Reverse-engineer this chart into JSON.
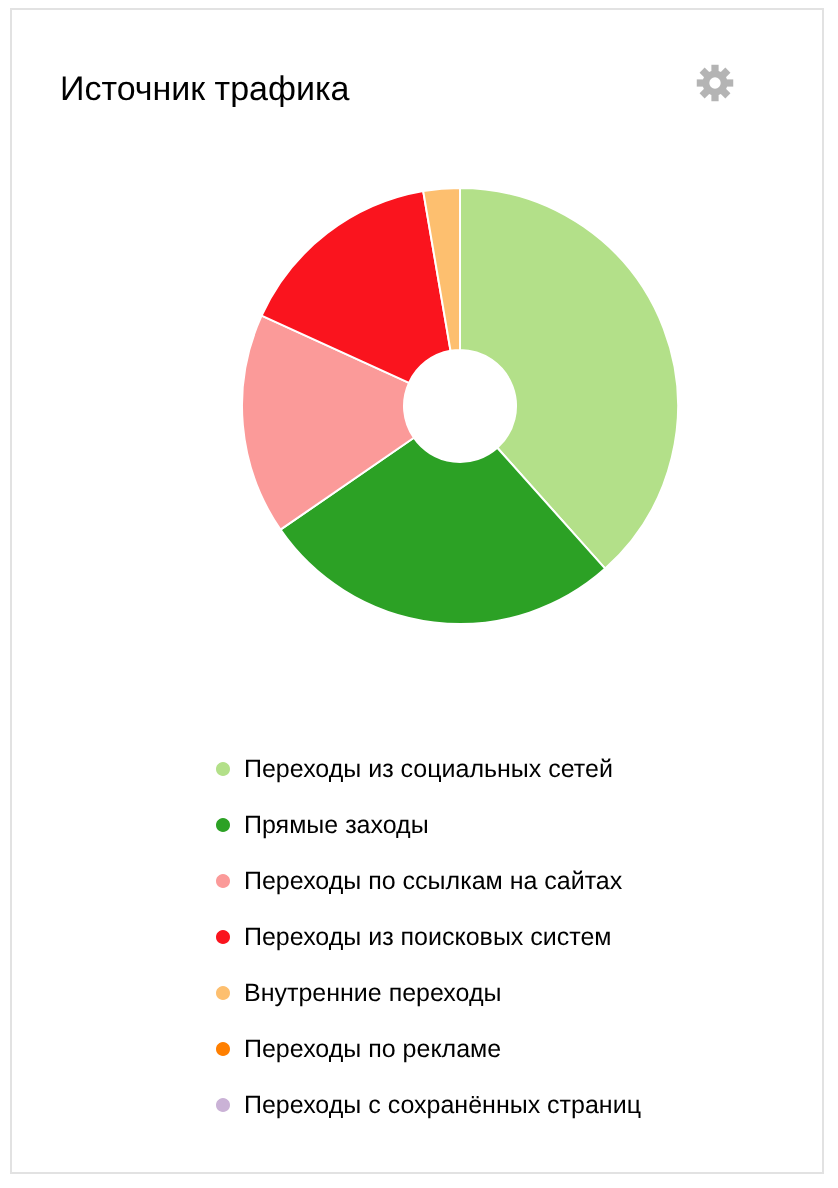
{
  "chart_data": {
    "type": "donut",
    "title": "Источник трафика",
    "categories": [
      "Переходы из социальных сетей",
      "Прямые заходы",
      "Переходы по ссылкам на сайтах",
      "Переходы из поисковых систем",
      "Внутренние переходы",
      "Переходы по рекламе",
      "Переходы с сохранённых страниц"
    ],
    "values": [
      38.4,
      27.0,
      16.4,
      15.5,
      2.7,
      0,
      0
    ],
    "colors": [
      "#b3e089",
      "#2ca125",
      "#fb9a99",
      "#fa141e",
      "#fdbf6f",
      "#ff7f00",
      "#cab2d6"
    ],
    "legend": "bottom"
  }
}
